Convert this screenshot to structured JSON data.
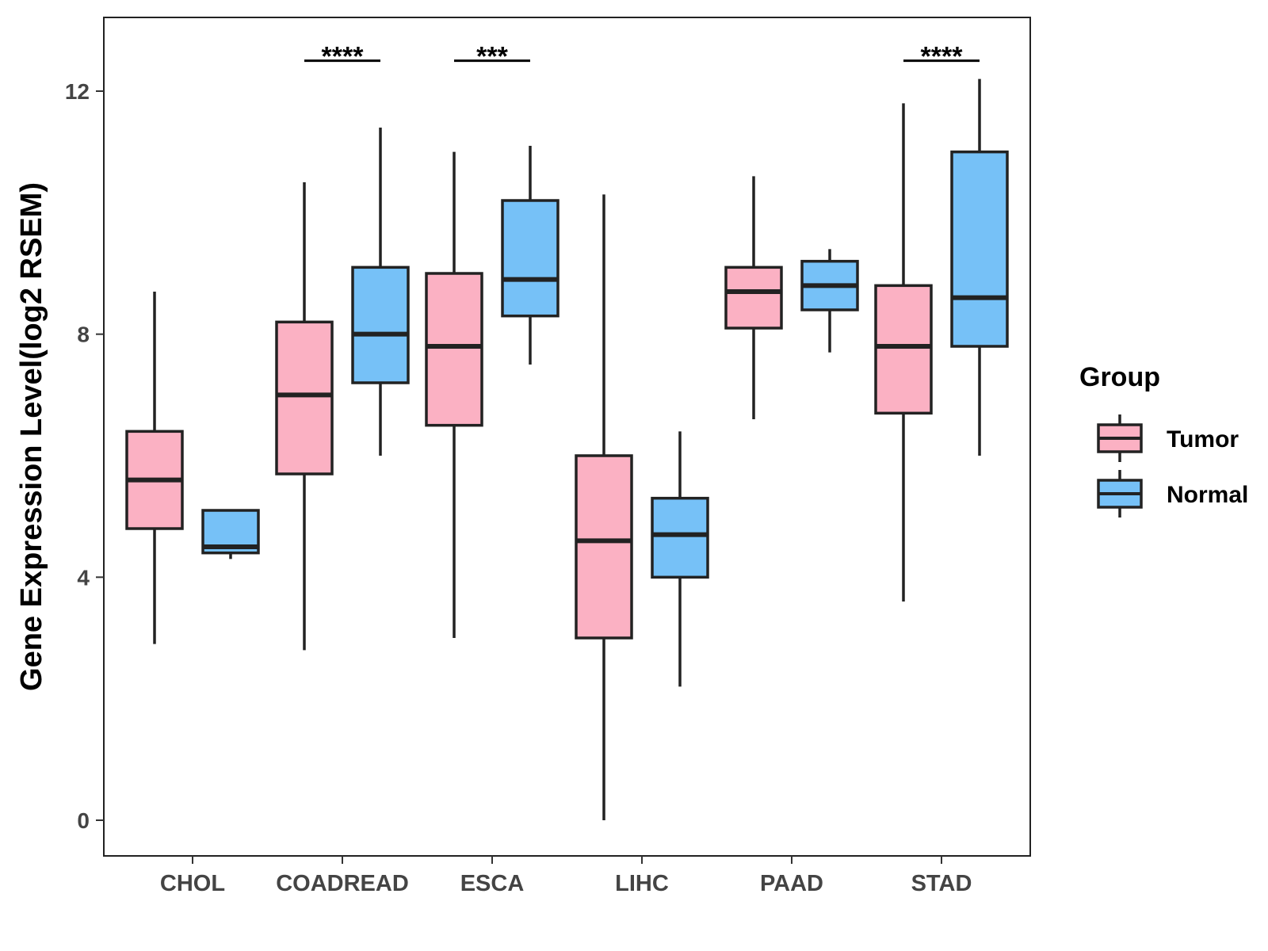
{
  "chart_data": {
    "type": "box",
    "title": "",
    "xlabel": "",
    "ylabel": "Gene Expression Level(log2 RSEM)",
    "ylim": [
      -0.6,
      13.2
    ],
    "yticks": [
      0,
      4,
      8,
      12
    ],
    "categories": [
      "CHOL",
      "COADREAD",
      "ESCA",
      "LIHC",
      "PAAD",
      "STAD"
    ],
    "legend": {
      "title": "Group",
      "position": "right",
      "entries": [
        {
          "name": "Tumor",
          "color": "#FBB1C3"
        },
        {
          "name": "Normal",
          "color": "#76C1F7"
        }
      ]
    },
    "colors": {
      "Tumor": "#FBB1C3",
      "Normal": "#76C1F7",
      "stroke": "#222222"
    },
    "series": [
      {
        "name": "Tumor",
        "boxes": [
          {
            "category": "CHOL",
            "min": 2.9,
            "q1": 4.8,
            "median": 5.6,
            "q3": 6.4,
            "max": 8.7
          },
          {
            "category": "COADREAD",
            "min": 2.8,
            "q1": 5.7,
            "median": 7.0,
            "q3": 8.2,
            "max": 10.5
          },
          {
            "category": "ESCA",
            "min": 3.0,
            "q1": 6.5,
            "median": 7.8,
            "q3": 9.0,
            "max": 11.0
          },
          {
            "category": "LIHC",
            "min": 0.0,
            "q1": 3.0,
            "median": 4.6,
            "q3": 6.0,
            "max": 10.3
          },
          {
            "category": "PAAD",
            "min": 6.6,
            "q1": 8.1,
            "median": 8.7,
            "q3": 9.1,
            "max": 10.6
          },
          {
            "category": "STAD",
            "min": 3.6,
            "q1": 6.7,
            "median": 7.8,
            "q3": 8.8,
            "max": 11.8
          }
        ]
      },
      {
        "name": "Normal",
        "boxes": [
          {
            "category": "CHOL",
            "min": 4.3,
            "q1": 4.4,
            "median": 4.5,
            "q3": 5.1,
            "max": 5.1
          },
          {
            "category": "COADREAD",
            "min": 6.0,
            "q1": 7.2,
            "median": 8.0,
            "q3": 9.1,
            "max": 11.4
          },
          {
            "category": "ESCA",
            "min": 7.5,
            "q1": 8.3,
            "median": 8.9,
            "q3": 10.2,
            "max": 11.1
          },
          {
            "category": "LIHC",
            "min": 2.2,
            "q1": 4.0,
            "median": 4.7,
            "q3": 5.3,
            "max": 6.4
          },
          {
            "category": "PAAD",
            "min": 7.7,
            "q1": 8.4,
            "median": 8.8,
            "q3": 9.2,
            "max": 9.4
          },
          {
            "category": "STAD",
            "min": 6.0,
            "q1": 7.8,
            "median": 8.6,
            "q3": 11.0,
            "max": 12.2
          }
        ]
      }
    ],
    "significance": [
      {
        "category": "COADREAD",
        "label": "****",
        "y": 12.5
      },
      {
        "category": "ESCA",
        "label": "***",
        "y": 12.5
      },
      {
        "category": "STAD",
        "label": "****",
        "y": 12.5
      }
    ]
  }
}
